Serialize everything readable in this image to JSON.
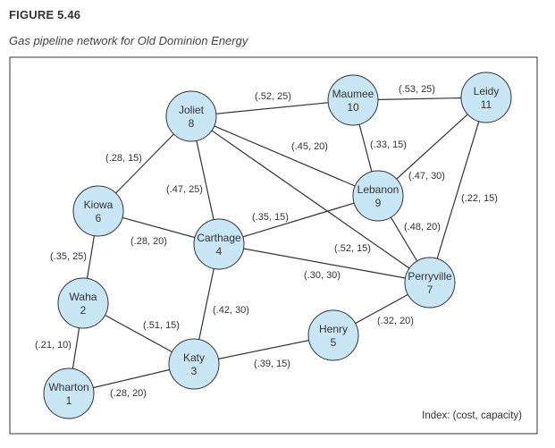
{
  "figure": {
    "label": "FIGURE 5.46",
    "caption": "Gas pipeline network for Old Dominion Energy",
    "index": "Index: (cost, capacity)"
  },
  "nodes": [
    {
      "id": 1,
      "name": "Wharton",
      "number": "1"
    },
    {
      "id": 2,
      "name": "Waha",
      "number": "2"
    },
    {
      "id": 3,
      "name": "Katy",
      "number": "3"
    },
    {
      "id": 4,
      "name": "Carthage",
      "number": "4"
    },
    {
      "id": 5,
      "name": "Henry",
      "number": "5"
    },
    {
      "id": 6,
      "name": "Kiowa",
      "number": "6"
    },
    {
      "id": 7,
      "name": "Perryville",
      "number": "7"
    },
    {
      "id": 8,
      "name": "Joliet",
      "number": "8"
    },
    {
      "id": 9,
      "name": "Lebanon",
      "number": "9"
    },
    {
      "id": 10,
      "name": "Maumee",
      "number": "10"
    },
    {
      "id": 11,
      "name": "Leidy",
      "number": "11"
    }
  ],
  "edges": [
    {
      "from": 8,
      "to": 10,
      "label": "(.52, 25)"
    },
    {
      "from": 10,
      "to": 11,
      "label": "(.53, 25)"
    },
    {
      "from": 8,
      "to": 6,
      "label": "(.28, 15)"
    },
    {
      "from": 8,
      "to": 9,
      "label": "(.45, 20)"
    },
    {
      "from": 10,
      "to": 9,
      "label": "(.33, 15)"
    },
    {
      "from": 9,
      "to": 11,
      "label": "(.47, 30)"
    },
    {
      "from": 8,
      "to": 4,
      "label": "(.47, 25)"
    },
    {
      "from": 11,
      "to": 7,
      "label": "(.22, 15)"
    },
    {
      "from": 4,
      "to": 9,
      "label": "(.35, 15)"
    },
    {
      "from": 9,
      "to": 7,
      "label": "(.48, 20)"
    },
    {
      "from": 6,
      "to": 4,
      "label": "(.28, 20)"
    },
    {
      "from": 8,
      "to": 7,
      "label": "(.52, 15)"
    },
    {
      "from": 6,
      "to": 2,
      "label": "(.35, 25)"
    },
    {
      "from": 4,
      "to": 7,
      "label": "(.30, 30)"
    },
    {
      "from": 4,
      "to": 3,
      "label": "(.42, 30)"
    },
    {
      "from": 5,
      "to": 7,
      "label": "(.32, 20)"
    },
    {
      "from": 2,
      "to": 3,
      "label": "(.51, 15)"
    },
    {
      "from": 2,
      "to": 1,
      "label": "(.21, 10)"
    },
    {
      "from": 3,
      "to": 5,
      "label": "(.39, 15)"
    },
    {
      "from": 1,
      "to": 3,
      "label": "(.28, 20)"
    }
  ]
}
